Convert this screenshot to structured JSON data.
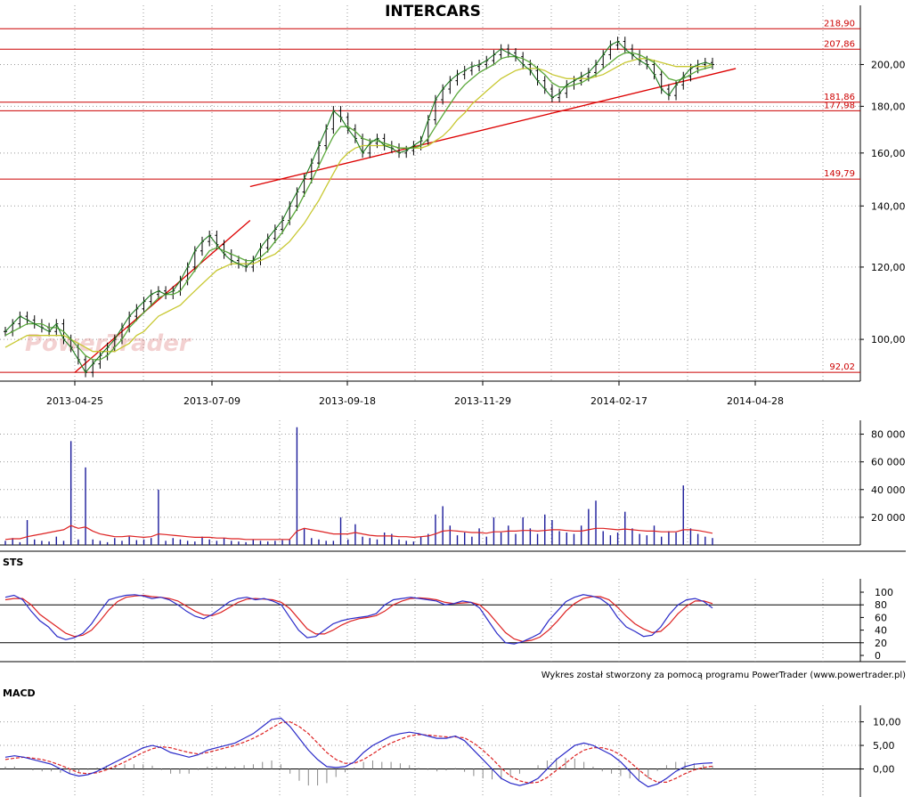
{
  "chart_data": [
    {
      "type": "ohlc",
      "title": "INTERCARS",
      "y_scale": "log",
      "ylim": [
        90,
        222
      ],
      "y_ticks": [
        "100,00",
        "120,00",
        "140,00",
        "160,00",
        "180,00",
        "200,00"
      ],
      "x_ticks": [
        "2013-04-25",
        "2013-07-09",
        "2013-09-18",
        "2013-11-29",
        "2014-02-17",
        "2014-04-28"
      ],
      "levels": [
        "218,90",
        "207,86",
        "181,86",
        "177,98",
        "149,79",
        "92,02"
      ],
      "trendlines": [
        {
          "from": [
            "2013-04-25",
            92
          ],
          "to": [
            "2013-07-29",
            135
          ]
        },
        {
          "from": [
            "2013-07-29",
            147
          ],
          "to": [
            "2014-04-18",
            198
          ]
        }
      ],
      "closes": [
        102,
        104,
        106,
        105,
        104,
        103,
        102,
        104,
        100,
        98,
        95,
        92,
        94,
        96,
        98,
        100,
        103,
        106,
        108,
        110,
        112,
        113,
        112,
        113,
        116,
        120,
        125,
        128,
        130,
        127,
        124,
        122,
        121,
        120,
        122,
        126,
        129,
        132,
        135,
        140,
        145,
        150,
        156,
        163,
        170,
        178,
        175,
        170,
        166,
        160,
        164,
        166,
        163,
        162,
        160,
        161,
        163,
        165,
        174,
        183,
        188,
        192,
        195,
        197,
        199,
        200,
        202,
        205,
        208,
        206,
        204,
        200,
        197,
        192,
        188,
        184,
        186,
        190,
        192,
        194,
        196,
        200,
        205,
        210,
        212,
        208,
        205,
        202,
        200,
        195,
        188,
        185,
        190,
        194,
        198,
        200,
        201,
        200
      ],
      "ma_short": [
        101,
        102,
        103,
        104,
        104,
        104,
        103,
        103,
        102,
        100,
        98,
        96,
        95,
        95,
        96,
        98,
        100,
        103,
        105,
        107,
        109,
        111,
        112,
        112,
        113,
        116,
        119,
        122,
        125,
        126,
        125,
        124,
        123,
        122,
        122,
        123,
        125,
        128,
        131,
        135,
        139,
        144,
        149,
        155,
        161,
        167,
        171,
        171,
        169,
        166,
        165,
        165,
        164,
        163,
        162,
        162,
        162,
        163,
        166,
        171,
        176,
        181,
        186,
        190,
        193,
        196,
        198,
        200,
        203,
        204,
        204,
        203,
        201,
        198,
        195,
        191,
        189,
        189,
        190,
        191,
        193,
        195,
        198,
        201,
        204,
        206,
        206,
        205,
        203,
        201,
        197,
        193,
        192,
        193,
        195,
        197,
        198,
        199
      ],
      "ma_long": [
        98,
        99,
        100,
        101,
        101,
        101,
        101,
        101,
        101,
        100,
        99,
        98,
        97,
        97,
        97,
        97,
        98,
        99,
        101,
        102,
        104,
        106,
        107,
        108,
        109,
        111,
        113,
        115,
        117,
        119,
        120,
        121,
        121,
        121,
        121,
        122,
        123,
        124,
        126,
        128,
        131,
        134,
        138,
        142,
        147,
        152,
        157,
        160,
        162,
        163,
        163,
        163,
        163,
        163,
        162,
        162,
        162,
        162,
        163,
        165,
        167,
        170,
        174,
        177,
        181,
        184,
        187,
        190,
        193,
        195,
        197,
        198,
        198,
        198,
        197,
        195,
        194,
        193,
        193,
        193,
        193,
        194,
        195,
        197,
        199,
        201,
        202,
        203,
        203,
        202,
        201,
        200,
        199,
        199,
        199,
        199,
        199,
        200
      ]
    },
    {
      "type": "bar",
      "title": "",
      "y_ticks": [
        "20 000",
        "40 000",
        "60 000",
        "80 000"
      ],
      "ylim": [
        0,
        90000
      ],
      "values": [
        3000,
        5000,
        2000,
        18000,
        4000,
        3000,
        2500,
        6000,
        3000,
        75000,
        4000,
        56000,
        4000,
        3000,
        2000,
        5000,
        3000,
        6000,
        3500,
        4000,
        5000,
        40000,
        3000,
        5000,
        4000,
        3000,
        2500,
        6000,
        4000,
        3000,
        5000,
        3000,
        2500,
        2000,
        4000,
        3000,
        2500,
        3000,
        3500,
        4000,
        85000,
        12000,
        5000,
        4000,
        3000,
        3000,
        20000,
        4000,
        15000,
        6000,
        5000,
        4000,
        9000,
        8000,
        4000,
        3000,
        2500,
        6000,
        8000,
        22000,
        28000,
        14000,
        7000,
        9000,
        6000,
        12000,
        6000,
        20000,
        9000,
        14000,
        8000,
        20000,
        12000,
        8000,
        22000,
        18000,
        10000,
        9000,
        8000,
        14000,
        26000,
        32000,
        10000,
        7000,
        9000,
        24000,
        12000,
        8000,
        7000,
        14000,
        6000,
        10000,
        9000,
        43000,
        12000,
        8000,
        6000,
        5000
      ],
      "ma_values": [
        4000,
        4500,
        4500,
        6000,
        7000,
        8000,
        9000,
        10000,
        11000,
        14000,
        12000,
        13000,
        10000,
        8000,
        7000,
        6000,
        6000,
        6500,
        6000,
        5500,
        6000,
        8000,
        7500,
        7000,
        6500,
        6000,
        5500,
        5500,
        5500,
        5000,
        5000,
        4500,
        4500,
        4000,
        4000,
        4000,
        4000,
        4000,
        4000,
        4000,
        10000,
        12000,
        11000,
        10000,
        9000,
        8000,
        8000,
        8000,
        9000,
        8000,
        7000,
        6500,
        6500,
        6500,
        6000,
        6000,
        5500,
        6000,
        6500,
        8000,
        10000,
        10500,
        10000,
        9500,
        9000,
        9000,
        8500,
        9500,
        9500,
        10000,
        10000,
        10500,
        10500,
        10000,
        10500,
        11000,
        11000,
        10500,
        10000,
        10000,
        11000,
        12000,
        12000,
        11500,
        11000,
        11500,
        11000,
        10500,
        10000,
        10000,
        9500,
        9500,
        9500,
        11000,
        11000,
        10500,
        9500,
        8500
      ]
    },
    {
      "type": "line",
      "title": "STS",
      "ylim": [
        0,
        100
      ],
      "y_ticks": [
        "0",
        "20",
        "40",
        "60",
        "80",
        "100"
      ],
      "series": [
        {
          "color": "#2a2ac8",
          "values": [
            92,
            95,
            88,
            70,
            55,
            45,
            30,
            25,
            28,
            35,
            50,
            70,
            88,
            92,
            95,
            96,
            94,
            90,
            92,
            88,
            80,
            70,
            62,
            58,
            65,
            75,
            85,
            90,
            92,
            88,
            90,
            86,
            80,
            60,
            40,
            28,
            30,
            40,
            50,
            55,
            58,
            60,
            62,
            66,
            80,
            88,
            90,
            92,
            90,
            88,
            86,
            80,
            82,
            86,
            84,
            75,
            55,
            35,
            20,
            18,
            22,
            28,
            35,
            55,
            70,
            85,
            92,
            96,
            94,
            90,
            80,
            60,
            45,
            38,
            30,
            32,
            45,
            65,
            80,
            88,
            90,
            85,
            75
          ]
        },
        {
          "color": "#dd2222",
          "values": [
            88,
            90,
            90,
            80,
            65,
            55,
            45,
            35,
            30,
            32,
            40,
            55,
            72,
            85,
            92,
            94,
            95,
            93,
            92,
            90,
            86,
            78,
            70,
            64,
            63,
            68,
            76,
            84,
            89,
            90,
            89,
            88,
            84,
            74,
            58,
            42,
            34,
            34,
            40,
            48,
            54,
            58,
            60,
            63,
            70,
            80,
            86,
            90,
            91,
            90,
            88,
            84,
            82,
            83,
            84,
            80,
            68,
            52,
            36,
            26,
            22,
            24,
            29,
            40,
            54,
            70,
            82,
            90,
            93,
            93,
            88,
            76,
            62,
            50,
            42,
            36,
            38,
            50,
            66,
            78,
            86,
            86,
            82
          ]
        }
      ]
    },
    {
      "type": "line",
      "title": "MACD",
      "y_ticks": [
        "0,00",
        "5,00",
        "10,00"
      ],
      "ylim": [
        -5,
        12
      ],
      "series": [
        {
          "color": "#2a2ac8",
          "values": [
            2.5,
            2.8,
            2.5,
            2.0,
            1.5,
            1.0,
            0.0,
            -1.0,
            -1.5,
            -1.2,
            -0.5,
            0.5,
            1.5,
            2.5,
            3.5,
            4.5,
            5.0,
            4.5,
            3.5,
            3.0,
            2.5,
            3.0,
            4.0,
            4.5,
            5.0,
            5.5,
            6.5,
            7.5,
            9.0,
            10.5,
            10.8,
            9.0,
            6.5,
            4.0,
            2.0,
            0.5,
            0.3,
            0.5,
            1.5,
            3.5,
            5.0,
            6.0,
            7.0,
            7.5,
            7.8,
            7.5,
            7.0,
            6.5,
            6.5,
            7.0,
            6.0,
            4.0,
            2.0,
            0.0,
            -2.0,
            -3.0,
            -3.5,
            -3.0,
            -2.0,
            0.0,
            2.0,
            3.5,
            5.0,
            5.5,
            5.0,
            4.0,
            3.0,
            1.5,
            -0.5,
            -2.5,
            -3.8,
            -3.2,
            -2.0,
            -0.5,
            0.5,
            1.0,
            1.2,
            1.3
          ]
        },
        {
          "color": "#dd2222",
          "values": [
            2.0,
            2.3,
            2.5,
            2.3,
            2.0,
            1.5,
            0.8,
            0.0,
            -0.8,
            -1.0,
            -0.8,
            -0.2,
            0.6,
            1.5,
            2.5,
            3.5,
            4.3,
            4.7,
            4.5,
            4.0,
            3.5,
            3.2,
            3.5,
            4.0,
            4.5,
            5.0,
            5.7,
            6.5,
            7.5,
            8.7,
            9.8,
            10.0,
            9.0,
            7.5,
            5.5,
            3.5,
            2.0,
            1.2,
            1.2,
            2.0,
            3.2,
            4.5,
            5.5,
            6.3,
            7.0,
            7.3,
            7.2,
            7.0,
            6.8,
            6.8,
            6.6,
            5.5,
            4.0,
            2.2,
            0.2,
            -1.5,
            -2.5,
            -3.0,
            -2.8,
            -1.8,
            -0.3,
            1.2,
            2.8,
            4.0,
            4.5,
            4.5,
            4.0,
            3.0,
            1.5,
            -0.2,
            -1.8,
            -2.8,
            -2.8,
            -2.0,
            -1.0,
            -0.2,
            0.3,
            0.6
          ]
        }
      ],
      "histogram": [
        0.5,
        0.5,
        0.0,
        -0.3,
        -0.5,
        -0.5,
        -0.8,
        -1.0,
        -0.7,
        -0.2,
        0.3,
        0.7,
        0.9,
        1.0,
        1.0,
        1.0,
        0.7,
        -0.2,
        -1.0,
        -1.0,
        -1.0,
        -0.2,
        0.5,
        0.5,
        0.5,
        0.5,
        0.8,
        1.0,
        1.5,
        1.8,
        1.0,
        -1.0,
        -2.5,
        -3.5,
        -3.5,
        -3.0,
        -1.7,
        -0.7,
        0.3,
        1.5,
        1.8,
        1.5,
        1.5,
        1.2,
        0.8,
        0.2,
        -0.2,
        -0.5,
        -0.3,
        0.2,
        -0.6,
        -1.5,
        -2.0,
        -2.2,
        -2.2,
        -1.5,
        -1.0,
        0.0,
        0.8,
        1.8,
        2.3,
        2.3,
        2.2,
        1.5,
        0.5,
        -0.5,
        -1.0,
        -1.5,
        -2.0,
        -2.3,
        -2.0,
        -0.4,
        0.8,
        1.5,
        1.5,
        1.2,
        0.9,
        0.7
      ]
    }
  ],
  "credit": "Wykres został stworzony za pomocą programu PowerTrader (www.powertrader.pl)",
  "watermark": "PowerTrader"
}
